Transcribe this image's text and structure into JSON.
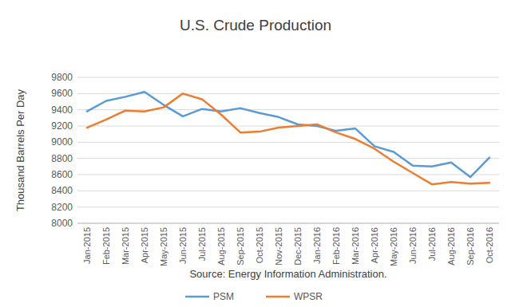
{
  "chart_data": {
    "type": "line",
    "title": "U.S. Crude Production",
    "y_label": "Thousand Barrels Per Day",
    "x_label": "Source: Energy Information Administration.",
    "categories": [
      "Jan-2015",
      "Feb-2015",
      "Mar-2015",
      "Apr-2015",
      "May-2015",
      "Jun-2015",
      "Jul-2015",
      "Aug-2015",
      "Sep-2015",
      "Oct-2015",
      "Nov-2015",
      "Dec-2015",
      "Jan-2016",
      "Feb-2016",
      "Mar-2016",
      "Apr-2016",
      "May-2016",
      "Jun-2016",
      "Jul-2016",
      "Aug-2016",
      "Sep-2016",
      "Oct-2016"
    ],
    "series": [
      {
        "name": "PSM",
        "color": "#5b9bd5",
        "values": [
          9380,
          9510,
          9560,
          9620,
          9460,
          9320,
          9410,
          9380,
          9420,
          9360,
          9310,
          9220,
          9200,
          9140,
          9170,
          8950,
          8880,
          8710,
          8700,
          8750,
          8570,
          8810
        ]
      },
      {
        "name": "WPSR",
        "color": "#ed7d31",
        "values": [
          9180,
          9280,
          9390,
          9380,
          9430,
          9600,
          9530,
          9340,
          9120,
          9130,
          9180,
          9200,
          9220,
          9120,
          9040,
          8920,
          8760,
          8620,
          8480,
          8510,
          8490,
          8500
        ]
      }
    ],
    "ylim": [
      8000,
      9800
    ],
    "yticks": [
      8000,
      8200,
      8400,
      8600,
      8800,
      9000,
      9200,
      9400,
      9600,
      9800
    ],
    "grid": true,
    "legend": "bottom"
  }
}
